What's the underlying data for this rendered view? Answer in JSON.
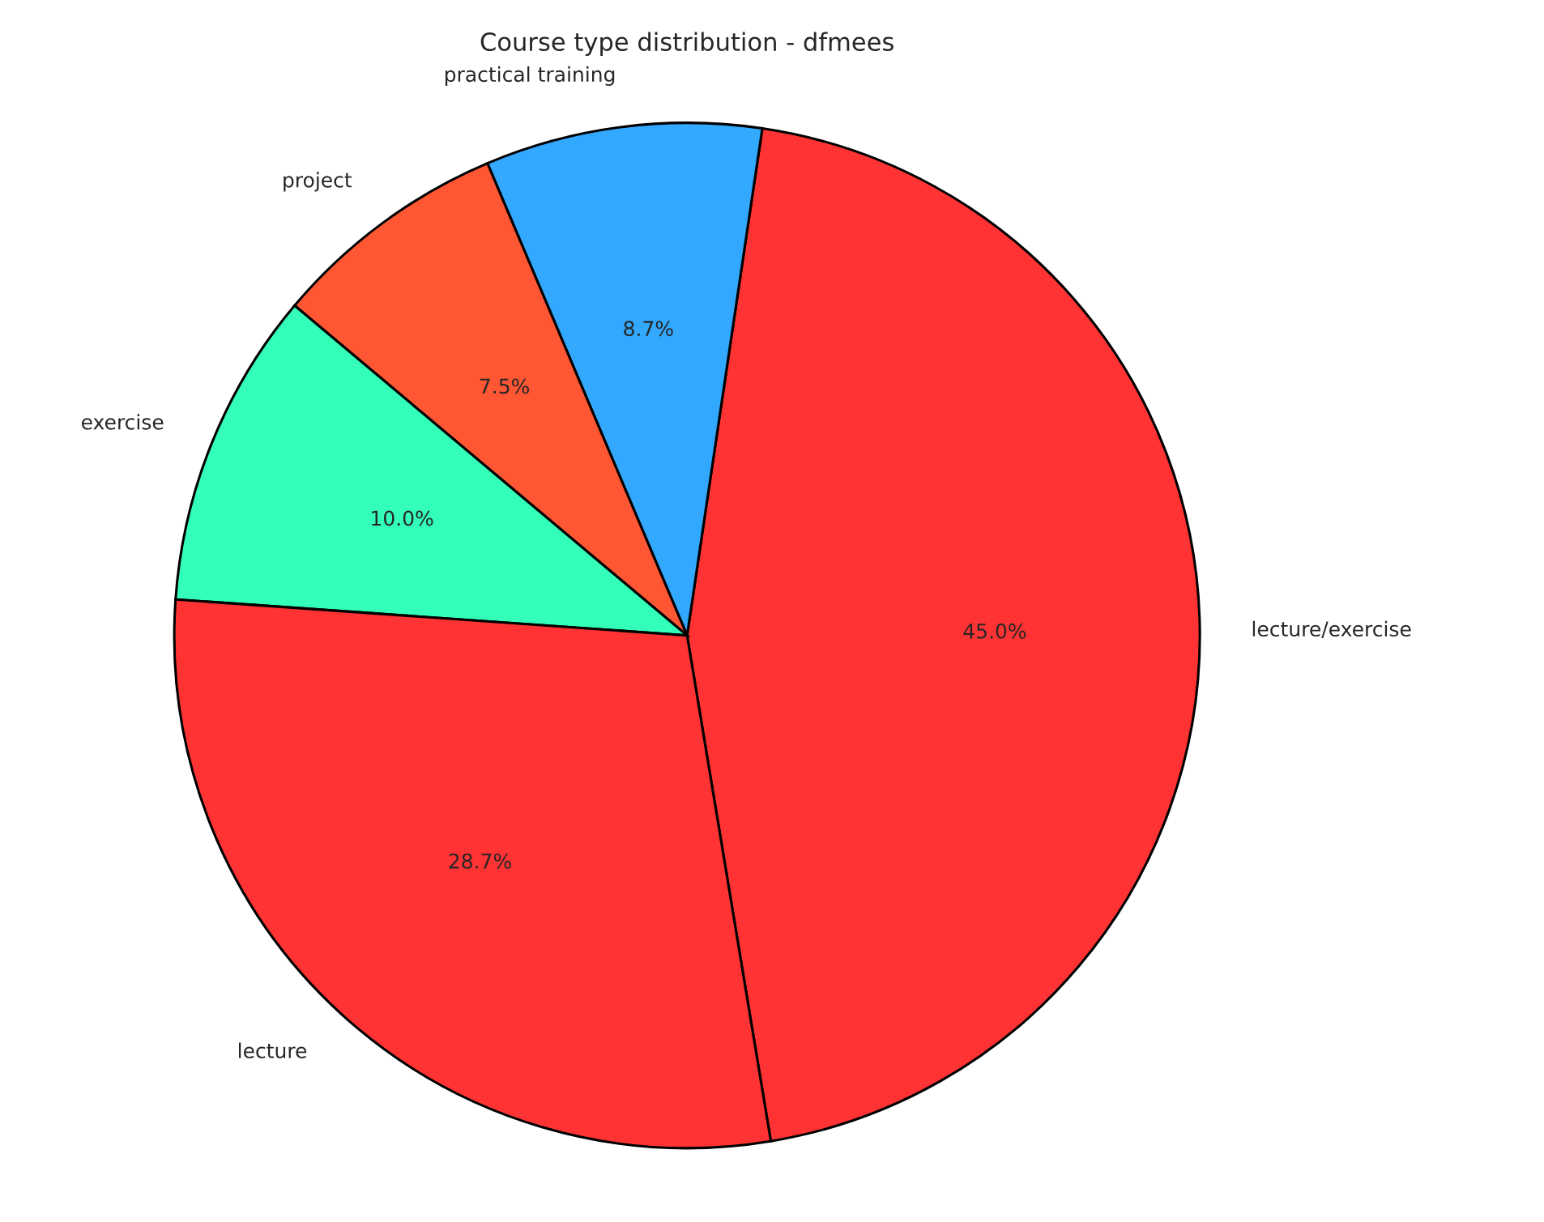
{
  "chart_data": {
    "type": "pie",
    "title": "Course type distribution - dfmees",
    "categories": [
      "lecture/exercise",
      "practical training",
      "project",
      "exercise",
      "lecture"
    ],
    "values": [
      45.0,
      8.7,
      7.5,
      10.0,
      28.7
    ],
    "value_labels": [
      "45.0%",
      "8.7%",
      "7.5%",
      "10.0%",
      "28.7%"
    ],
    "colors": [
      "#ff3333",
      "#33a8ff",
      "#ff5733",
      "#33ffb8",
      "#ff3333"
    ]
  }
}
